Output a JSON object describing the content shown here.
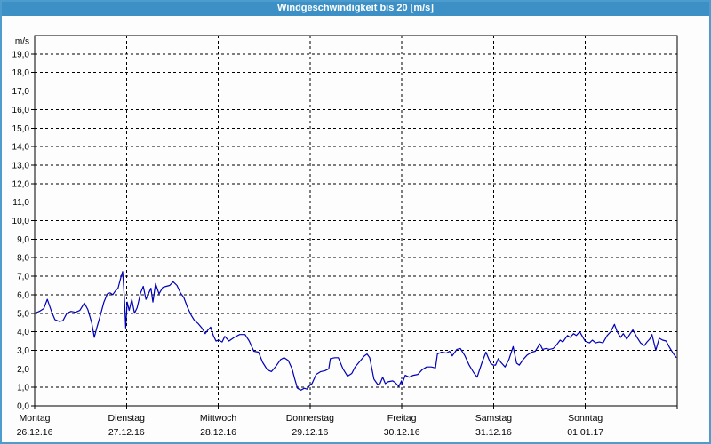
{
  "window": {
    "title": "Windgeschwindigkeit bis 20 [m/s]"
  },
  "colors": {
    "header_bg": "#3d90c5",
    "frame_border": "#4c9ccd",
    "background": "#fcfdfc",
    "title_text": "#ffffff",
    "grid": "#000000",
    "line": "#0000b8"
  },
  "chart_data": {
    "type": "line",
    "title": "Windgeschwindigkeit bis 20 [m/s]",
    "ylabel": "m/s",
    "ylim": [
      0,
      20
    ],
    "ytick_step": 1.0,
    "ytick_labels_top_to_bottom": [
      "19,0",
      "18,0",
      "17,0",
      "16,0",
      "15,0",
      "14,0",
      "13,0",
      "12,0",
      "11,0",
      "10,0",
      "9,0",
      "8,0",
      "7,0",
      "6,0",
      "5,0",
      "4,0",
      "3,0",
      "2,0",
      "1,0",
      "0,0"
    ],
    "grid": "dashed",
    "x_unit": "hours",
    "xlim": [
      0,
      168
    ],
    "day_tick_interval_hours": 24,
    "days": [
      {
        "label": "Montag",
        "date": "26.12.16"
      },
      {
        "label": "Dienstag",
        "date": "27.12.16"
      },
      {
        "label": "Mittwoch",
        "date": "28.12.16"
      },
      {
        "label": "Donnerstag",
        "date": "29.12.16"
      },
      {
        "label": "Freitag",
        "date": "30.12.16"
      },
      {
        "label": "Samstag",
        "date": "31.12.16"
      },
      {
        "label": "Sonntag",
        "date": "01.01.17"
      }
    ],
    "series": [
      {
        "name": "Windgeschwindigkeit",
        "color": "#0000b8",
        "points": [
          [
            0,
            5.0
          ],
          [
            1.2,
            5.1
          ],
          [
            2.4,
            5.25
          ],
          [
            3.3,
            5.75
          ],
          [
            4.4,
            5.1
          ],
          [
            5.3,
            4.65
          ],
          [
            6.5,
            4.55
          ],
          [
            7.4,
            4.6
          ],
          [
            8.4,
            5.0
          ],
          [
            9.5,
            5.1
          ],
          [
            10.7,
            5.05
          ],
          [
            11.8,
            5.15
          ],
          [
            13.0,
            5.55
          ],
          [
            13.9,
            5.2
          ],
          [
            14.9,
            4.5
          ],
          [
            15.6,
            3.7
          ],
          [
            16.3,
            4.25
          ],
          [
            17.2,
            4.9
          ],
          [
            18.1,
            5.6
          ],
          [
            19.0,
            6.05
          ],
          [
            19.7,
            6.1
          ],
          [
            20.4,
            6.0
          ],
          [
            21.1,
            6.2
          ],
          [
            21.8,
            6.35
          ],
          [
            22.5,
            6.9
          ],
          [
            23.0,
            7.25
          ],
          [
            23.5,
            5.7
          ],
          [
            23.8,
            4.2
          ],
          [
            24.2,
            5.6
          ],
          [
            24.7,
            5.15
          ],
          [
            25.4,
            5.75
          ],
          [
            26.1,
            5.0
          ],
          [
            26.8,
            5.3
          ],
          [
            27.7,
            6.1
          ],
          [
            28.4,
            6.45
          ],
          [
            29.1,
            5.75
          ],
          [
            30.4,
            6.35
          ],
          [
            30.9,
            5.6
          ],
          [
            31.6,
            6.6
          ],
          [
            32.5,
            6.05
          ],
          [
            33.5,
            6.4
          ],
          [
            34.4,
            6.45
          ],
          [
            35.3,
            6.5
          ],
          [
            36.2,
            6.7
          ],
          [
            37.2,
            6.5
          ],
          [
            38.1,
            6.1
          ],
          [
            39.0,
            5.85
          ],
          [
            40.0,
            5.3
          ],
          [
            40.9,
            4.9
          ],
          [
            41.8,
            4.6
          ],
          [
            42.7,
            4.45
          ],
          [
            43.7,
            4.2
          ],
          [
            44.6,
            3.9
          ],
          [
            45.3,
            4.1
          ],
          [
            46.0,
            4.25
          ],
          [
            46.7,
            3.8
          ],
          [
            47.4,
            3.5
          ],
          [
            48.1,
            3.55
          ],
          [
            49.0,
            3.45
          ],
          [
            49.7,
            3.75
          ],
          [
            50.8,
            3.5
          ],
          [
            52.2,
            3.7
          ],
          [
            53.6,
            3.85
          ],
          [
            55.0,
            3.85
          ],
          [
            56.1,
            3.5
          ],
          [
            57.3,
            2.95
          ],
          [
            58.5,
            2.9
          ],
          [
            59.6,
            2.35
          ],
          [
            60.8,
            1.95
          ],
          [
            61.9,
            1.85
          ],
          [
            63.1,
            2.15
          ],
          [
            64.3,
            2.5
          ],
          [
            65.2,
            2.6
          ],
          [
            66.3,
            2.45
          ],
          [
            67.3,
            2.0
          ],
          [
            68.0,
            1.45
          ],
          [
            68.7,
            0.95
          ],
          [
            69.6,
            0.85
          ],
          [
            70.5,
            0.95
          ],
          [
            71.2,
            0.9
          ],
          [
            71.9,
            1.1
          ],
          [
            72.5,
            1.2
          ],
          [
            73.6,
            1.7
          ],
          [
            74.8,
            1.85
          ],
          [
            75.9,
            1.9
          ],
          [
            76.9,
            2.0
          ],
          [
            77.3,
            2.55
          ],
          [
            78.5,
            2.6
          ],
          [
            79.4,
            2.6
          ],
          [
            80.6,
            2.0
          ],
          [
            81.8,
            1.6
          ],
          [
            82.9,
            1.75
          ],
          [
            83.8,
            2.1
          ],
          [
            85.0,
            2.4
          ],
          [
            86.2,
            2.7
          ],
          [
            86.9,
            2.8
          ],
          [
            87.6,
            2.6
          ],
          [
            88.7,
            1.45
          ],
          [
            89.7,
            1.15
          ],
          [
            90.3,
            1.2
          ],
          [
            91.0,
            1.55
          ],
          [
            91.7,
            1.2
          ],
          [
            92.4,
            1.3
          ],
          [
            93.6,
            1.35
          ],
          [
            94.3,
            1.25
          ],
          [
            95.2,
            1.05
          ],
          [
            95.9,
            1.35
          ],
          [
            96.0,
            1.15
          ],
          [
            96.9,
            1.65
          ],
          [
            97.9,
            1.55
          ],
          [
            99.0,
            1.65
          ],
          [
            100.2,
            1.7
          ],
          [
            101.3,
            1.95
          ],
          [
            102.5,
            2.1
          ],
          [
            103.7,
            2.1
          ],
          [
            104.8,
            2.05
          ],
          [
            105.3,
            2.8
          ],
          [
            106.4,
            2.9
          ],
          [
            107.6,
            2.85
          ],
          [
            108.5,
            2.95
          ],
          [
            109.2,
            2.7
          ],
          [
            110.4,
            3.05
          ],
          [
            111.3,
            3.1
          ],
          [
            112.5,
            2.7
          ],
          [
            113.6,
            2.2
          ],
          [
            114.8,
            1.8
          ],
          [
            115.7,
            1.55
          ],
          [
            116.9,
            2.3
          ],
          [
            118.0,
            2.9
          ],
          [
            119.2,
            2.3
          ],
          [
            119.9,
            2.2
          ],
          [
            120.5,
            2.2
          ],
          [
            121.2,
            2.55
          ],
          [
            121.9,
            2.35
          ],
          [
            123.0,
            2.1
          ],
          [
            124.0,
            2.5
          ],
          [
            125.1,
            3.2
          ],
          [
            126.0,
            2.3
          ],
          [
            126.7,
            2.2
          ],
          [
            127.7,
            2.5
          ],
          [
            128.8,
            2.75
          ],
          [
            130.0,
            2.9
          ],
          [
            130.9,
            2.95
          ],
          [
            132.1,
            3.35
          ],
          [
            132.8,
            3.05
          ],
          [
            133.7,
            3.1
          ],
          [
            134.6,
            3.05
          ],
          [
            135.6,
            3.1
          ],
          [
            136.5,
            3.3
          ],
          [
            137.4,
            3.55
          ],
          [
            138.1,
            3.45
          ],
          [
            139.3,
            3.8
          ],
          [
            140.0,
            3.7
          ],
          [
            140.9,
            3.9
          ],
          [
            141.6,
            3.8
          ],
          [
            142.5,
            4.0
          ],
          [
            143.2,
            3.75
          ],
          [
            143.9,
            3.5
          ],
          [
            144.4,
            3.45
          ],
          [
            145.1,
            3.4
          ],
          [
            145.8,
            3.55
          ],
          [
            146.7,
            3.4
          ],
          [
            147.6,
            3.45
          ],
          [
            148.6,
            3.4
          ],
          [
            149.7,
            3.8
          ],
          [
            150.6,
            4.0
          ],
          [
            151.6,
            4.4
          ],
          [
            152.3,
            4.0
          ],
          [
            153.2,
            3.7
          ],
          [
            153.9,
            3.9
          ],
          [
            154.8,
            3.6
          ],
          [
            155.7,
            3.9
          ],
          [
            156.4,
            4.1
          ],
          [
            157.5,
            3.7
          ],
          [
            158.4,
            3.4
          ],
          [
            159.4,
            3.25
          ],
          [
            160.1,
            3.45
          ],
          [
            160.8,
            3.6
          ],
          [
            161.4,
            3.85
          ],
          [
            162.4,
            3.0
          ],
          [
            163.3,
            3.65
          ],
          [
            164.2,
            3.55
          ],
          [
            165.1,
            3.5
          ],
          [
            166.0,
            3.15
          ],
          [
            166.9,
            2.85
          ],
          [
            167.8,
            2.6
          ]
        ]
      }
    ]
  }
}
